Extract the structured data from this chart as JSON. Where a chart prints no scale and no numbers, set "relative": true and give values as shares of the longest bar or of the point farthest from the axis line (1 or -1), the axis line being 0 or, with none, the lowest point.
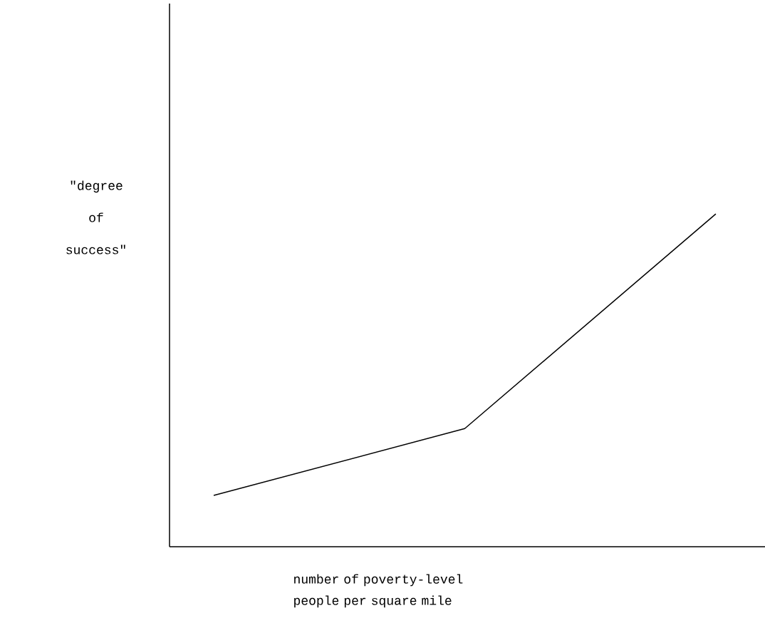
{
  "chart_data": {
    "type": "line",
    "relative": true,
    "xlabel": "number of poverty-level people per square mile",
    "ylabel": "\"degree of success\"",
    "categories": [
      null,
      null,
      null
    ],
    "values": [
      0.154,
      0.355,
      1.0
    ],
    "color": "#000000",
    "marker": "none",
    "line_style": "solid"
  }
}
